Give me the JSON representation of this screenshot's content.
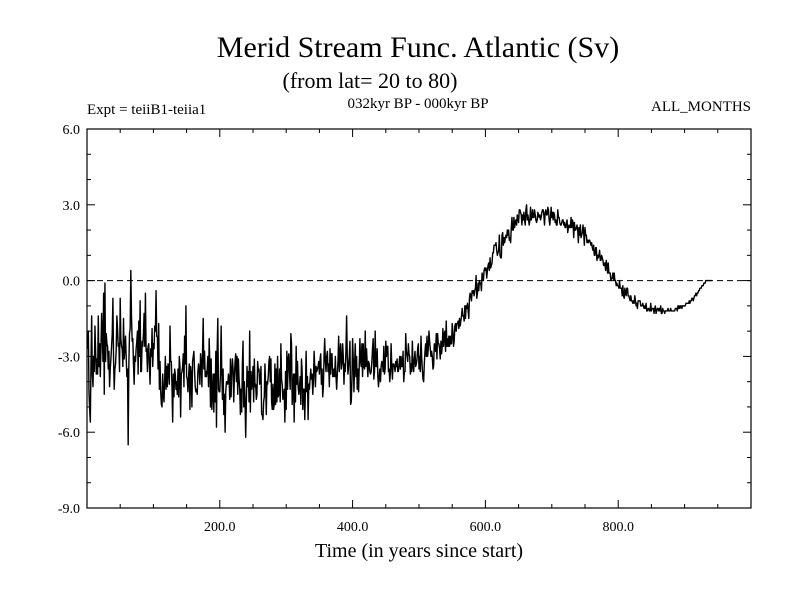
{
  "chart_data": {
    "type": "line",
    "title": "Merid Stream Func. Atlantic (Sv)",
    "subtitle": "(from lat= 20 to 80)",
    "experiment_label": "Expt = teiiB1-teiia1",
    "period_label": "032kyr BP - 000kyr BP",
    "months_label": "ALL_MONTHS",
    "xlabel": "Time (in years since start)",
    "ylabel": "",
    "xlim": [
      0,
      1000
    ],
    "ylim": [
      -9,
      6
    ],
    "x_ticks": [
      200,
      400,
      600,
      800
    ],
    "x_tick_labels": [
      "200.0",
      "400.0",
      "600.0",
      "800.0"
    ],
    "y_ticks": [
      6,
      3,
      0,
      -3,
      -6,
      -9
    ],
    "y_tick_labels": [
      "6.0",
      "3.0",
      "0.0",
      "-3.0",
      "-6.0",
      "-9.0"
    ],
    "reference_line": {
      "y": 0,
      "style": "dashed"
    },
    "grid": false,
    "series": [
      {
        "x_start": 1,
        "x_step": 1,
        "line_color": "#000000",
        "values": [
          -2.7,
          -2.0,
          -4.4,
          -5.1,
          -5.6,
          -3.3,
          -1.4,
          -3.7,
          -4.2,
          -3.0,
          -3.6,
          -1.8,
          -2.8,
          -3.7,
          -3.1,
          -3.7,
          -1.4,
          -3.4,
          -2.5,
          -3.8,
          -2.7,
          -1.3,
          -2.1,
          -3.2,
          -0.5,
          -4.5,
          -0.1,
          -3.2,
          -2.1,
          -2.5,
          -2.6,
          -3.5,
          -2.8,
          -4.2,
          -3.5,
          -3.1,
          -2.6,
          -2.1,
          -0.7,
          -3.1,
          -4.3,
          -3.5,
          -3.3,
          -2.7,
          -1.4,
          -1.9,
          -2.6,
          -2.5,
          -3.6,
          -0.7,
          -2.3,
          -2.6,
          -2.7,
          -3.4,
          -1.5,
          -3.1,
          -2.7,
          -2.2,
          -3.0,
          -3.8,
          -3.5,
          -6.5,
          -3.4,
          -2.1,
          -1.9,
          0.4,
          -1.4,
          -2.4,
          -2.3,
          -3.3,
          -4.1,
          -3.0,
          -3.2,
          -2.7,
          -2.4,
          -2.0,
          -3.7,
          -1.6,
          -3.0,
          -0.8,
          -3.6,
          -3.6,
          -2.4,
          -2.6,
          -2.1,
          -1.3,
          -2.6,
          -0.5,
          -2.8,
          -2.7,
          -3.6,
          -2.6,
          -2.5,
          -3.4,
          -4.1,
          -2.7,
          -3.0,
          -1.9,
          -3.4,
          -2.5,
          -2.7,
          -1.8,
          -2.0,
          -0.4,
          -2.2,
          -2.2,
          -3.5,
          -1.7,
          -4.3,
          -3.2,
          -4.4,
          -4.9,
          -5.0,
          -3.7,
          -4.5,
          -4.8,
          -3.9,
          -3.0,
          -4.3,
          -3.4,
          -4.2,
          -3.3,
          -3.5,
          -4.1,
          -1.8,
          -3.2,
          -3.2,
          -4.2,
          -5.6,
          -3.7,
          -4.6,
          -3.5,
          -3.7,
          -4.3,
          -4.0,
          -4.5,
          -3.5,
          -4.6,
          -3.0,
          -3.4,
          -5.4,
          -3.7,
          -3.6,
          -3.4,
          -2.9,
          -4.2,
          -2.2,
          -3.3,
          -1.0,
          -3.8,
          -3.9,
          -4.4,
          -3.8,
          -3.3,
          -5.1,
          -3.4,
          -3.7,
          -5.0,
          -3.2,
          -3.0,
          -2.8,
          -3.6,
          -4.2,
          -4.4,
          -4.3,
          -4.5,
          -3.6,
          -3.3,
          -3.6,
          -4.1,
          -2.9,
          -3.2,
          -4.2,
          -2.8,
          -1.5,
          -3.5,
          -2.8,
          -3.8,
          -3.6,
          -3.8,
          -3.5,
          -3.0,
          -4.2,
          -2.3,
          -3.3,
          -5.0,
          -3.1,
          -5.1,
          -4.5,
          -3.7,
          -5.2,
          -3.7,
          -4.8,
          -2.8,
          -5.8,
          -2.8,
          -1.5,
          -4.3,
          -4.4,
          -4.4,
          -3.7,
          -1.8,
          -3.6,
          -4.7,
          -3.5,
          -5.3,
          -4.5,
          -6.0,
          -4.4,
          -4.0,
          -4.0,
          -4.1,
          -3.7,
          -3.9,
          -4.7,
          -3.1,
          -4.6,
          -3.6,
          -3.1,
          -3.5,
          -4.8,
          -3.8,
          -3.2,
          -2.9,
          -4.0,
          -3.0,
          -4.5,
          -3.1,
          -3.9,
          -4.3,
          -5.3,
          -4.3,
          -5.2,
          -3.3,
          -2.4,
          -5.0,
          -4.0,
          -4.8,
          -6.2,
          -4.8,
          -3.4,
          -4.2,
          -3.6,
          -4.8,
          -2.0,
          -5.2,
          -3.6,
          -4.3,
          -4.0,
          -3.4,
          -4.8,
          -3.1,
          -4.2,
          -4.1,
          -4.7,
          -4.5,
          -3.2,
          -3.6,
          -3.5,
          -4.1,
          -4.0,
          -3.4,
          -5.3,
          -5.3,
          -5.5,
          -4.8,
          -4.6,
          -3.3,
          -4.1,
          -5.3,
          -4.0,
          -4.1,
          -3.8,
          -3.2,
          -3.0,
          -4.0,
          -3.1,
          -4.8,
          -5.1,
          -4.1,
          -5.1,
          -4.9,
          -3.3,
          -4.9,
          -3.5,
          -4.8,
          -3.0,
          -4.6,
          -4.5,
          -3.5,
          -4.8,
          -2.5,
          -3.9,
          -4.1,
          -4.7,
          -4.6,
          -4.3,
          -5.6,
          -3.6,
          -5.1,
          -2.8,
          -4.3,
          -3.1,
          -2.9,
          -3.7,
          -4.3,
          -2.1,
          -2.5,
          -4.9,
          -4.3,
          -3.7,
          -5.6,
          -3.7,
          -4.8,
          -2.6,
          -4.1,
          -3.2,
          -4.2,
          -4.5,
          -4.2,
          -3.8,
          -4.9,
          -3.1,
          -3.6,
          -5.1,
          -4.3,
          -4.3,
          -5.5,
          -4.2,
          -2.8,
          -4.4,
          -3.8,
          -5.5,
          -4.1,
          -4.3,
          -3.9,
          -3.5,
          -3.9,
          -3.7,
          -4.5,
          -4.0,
          -2.8,
          -3.4,
          -4.2,
          -3.4,
          -3.6,
          -3.5,
          -3.4,
          -3.2,
          -3.7,
          -3.1,
          -2.9,
          -4.1,
          -3.5,
          -4.6,
          -4.2,
          -3.0,
          -2.3,
          -3.2,
          -3.6,
          -3.0,
          -2.8,
          -3.6,
          -3.3,
          -4.2,
          -2.7,
          -3.7,
          -2.9,
          -2.9,
          -3.8,
          -3.8,
          -3.5,
          -3.8,
          -3.0,
          -3.8,
          -4.3,
          -3.7,
          -3.2,
          -2.2,
          -3.6,
          -2.9,
          -2.5,
          -3.5,
          -3.3,
          -2.5,
          -3.0,
          -4.1,
          -3.3,
          -3.6,
          -2.7,
          -1.4,
          -3.0,
          -3.7,
          -3.4,
          -3.0,
          -2.4,
          -4.9,
          -4.8,
          -3.9,
          -2.3,
          -3.1,
          -4.4,
          -3.3,
          -2.5,
          -3.8,
          -3.0,
          -4.3,
          -3.5,
          -4.4,
          -3.4,
          -2.3,
          -3.2,
          -3.4,
          -2.5,
          -3.8,
          -2.5,
          -3.4,
          -3.5,
          -2.0,
          -3.4,
          -2.7,
          -3.3,
          -3.8,
          -3.2,
          -3.3,
          -3.6,
          -3.7,
          -3.6,
          -3.2,
          -2.7,
          -2.3,
          -3.9,
          -3.6,
          -2.0,
          -3.4,
          -3.4,
          -2.7,
          -3.8,
          -4.2,
          -3.8,
          -3.5,
          -4.0,
          -3.4,
          -3.2,
          -3.3,
          -3.6,
          -2.6,
          -3.7,
          -3.5,
          -2.4,
          -3.0,
          -2.6,
          -2.6,
          -3.6,
          -3.5,
          -4.0,
          -3.6,
          -2.5,
          -3.4,
          -3.9,
          -3.3,
          -3.3,
          -3.4,
          -3.6,
          -3.2,
          -3.4,
          -3.1,
          -3.6,
          -3.6,
          -3.3,
          -3.0,
          -3.5,
          -3.0,
          -3.4,
          -3.4,
          -2.8,
          -4.0,
          -3.6,
          -3.6,
          -2.1,
          -2.8,
          -3.0,
          -3.2,
          -2.5,
          -2.9,
          -3.0,
          -3.7,
          -3.3,
          -3.6,
          -2.4,
          -3.4,
          -3.6,
          -3.1,
          -2.8,
          -3.4,
          -3.3,
          -3.1,
          -2.7,
          -2.5,
          -3.5,
          -3.0,
          -3.6,
          -2.2,
          -3.0,
          -3.5,
          -3.9,
          -4.0,
          -3.3,
          -2.8,
          -2.5,
          -3.0,
          -2.2,
          -3.0,
          -2.7,
          -2.0,
          -2.4,
          -2.7,
          -3.0,
          -2.8,
          -3.0,
          -3.5,
          -3.4,
          -2.5,
          -2.7,
          -2.8,
          -2.1,
          -3.1,
          -2.1,
          -2.5,
          -2.5,
          -2.7,
          -3.1,
          -2.4,
          -2.9,
          -2.6,
          -1.9,
          -2.6,
          -2.1,
          -2.0,
          -2.8,
          -1.6,
          -2.6,
          -2.3,
          -2.6,
          -2.2,
          -2.6,
          -2.2,
          -2.5,
          -2.5,
          -1.7,
          -2.0,
          -2.6,
          -2.4,
          -1.8,
          -1.7,
          -2.0,
          -1.7,
          -1.7,
          -1.6,
          -1.9,
          -1.5,
          -1.8,
          -1.6,
          -1.4,
          -1.1,
          -1.4,
          -1.4,
          -1.6,
          -1.0,
          -1.5,
          -1.0,
          -1.1,
          -0.9,
          -1.2,
          -1.5,
          -0.7,
          -0.5,
          -0.6,
          -0.8,
          -0.4,
          -0.5,
          -0.4,
          -0.6,
          -0.4,
          -0.3,
          0.2,
          -0.7,
          -0.5,
          -0.1,
          -0.4,
          0.0,
          -0.1,
          -0.1,
          -0.4,
          0.3,
          0.2,
          0.0,
          0.4,
          0.5,
          0.4,
          0.5,
          0.1,
          0.4,
          0.6,
          0.7,
          0.4,
          0.9,
          0.5,
          0.6,
          0.7,
          1.1,
          1.1,
          1.4,
          1.4,
          1.4,
          1.5,
          1.2,
          1.0,
          1.1,
          1.2,
          1.8,
          1.0,
          0.9,
          0.9,
          1.8,
          1.9,
          1.4,
          1.7,
          1.5,
          1.7,
          1.8,
          1.7,
          2.0,
          1.8,
          2.0,
          1.6,
          1.7,
          1.5,
          2.1,
          2.5,
          2.0,
          2.0,
          2.5,
          2.1,
          2.3,
          2.4,
          2.2,
          2.6,
          2.5,
          2.3,
          2.8,
          2.8,
          2.7,
          2.6,
          2.2,
          2.6,
          2.4,
          2.7,
          2.4,
          2.2,
          2.8,
          3.0,
          2.4,
          2.6,
          2.4,
          2.2,
          2.4,
          2.9,
          2.4,
          2.5,
          2.8,
          2.5,
          2.5,
          2.8,
          2.6,
          2.4,
          2.3,
          2.4,
          2.7,
          2.6,
          2.5,
          2.6,
          2.4,
          2.5,
          2.7,
          2.8,
          2.8,
          2.6,
          2.2,
          2.7,
          2.8,
          2.6,
          2.6,
          2.9,
          2.8,
          2.4,
          2.2,
          2.5,
          2.9,
          2.5,
          2.7,
          2.4,
          2.7,
          2.6,
          2.3,
          2.4,
          2.2,
          2.2,
          2.8,
          2.5,
          2.5,
          2.3,
          2.2,
          2.2,
          2.3,
          2.4,
          2.4,
          2.2,
          2.3,
          2.1,
          2.1,
          2.3,
          2.4,
          1.9,
          2.1,
          2.2,
          2.1,
          2.1,
          2.5,
          2.1,
          2.4,
          2.3,
          1.7,
          2.3,
          2.0,
          2.0,
          2.1,
          2.2,
          2.0,
          1.5,
          2.1,
          1.8,
          2.2,
          1.7,
          1.8,
          1.9,
          2.2,
          1.9,
          1.4,
          2.1,
          1.8,
          1.8,
          1.5,
          1.6,
          1.5,
          1.6,
          1.6,
          1.5,
          1.4,
          1.5,
          1.3,
          1.2,
          1.4,
          1.0,
          1.0,
          1.3,
          1.3,
          0.8,
          1.0,
          0.9,
          1.0,
          1.2,
          0.8,
          0.8,
          1.0,
          0.9,
          0.8,
          0.6,
          0.6,
          0.7,
          0.4,
          0.8,
          0.6,
          0.3,
          0.7,
          0.3,
          0.3,
          0.3,
          0.0,
          0.1,
          0.1,
          0.3,
          0.0,
          0.3,
          0.0,
          0.0,
          -0.2,
          -0.1,
          -0.2,
          -0.2,
          -0.3,
          0.0,
          -0.3,
          -0.3,
          -0.3,
          -0.6,
          -0.2,
          -0.6,
          -0.7,
          -0.3,
          -0.5,
          -0.6,
          -0.3,
          -0.3,
          -0.6,
          -0.6,
          -0.7,
          -0.8,
          -0.6,
          -0.8,
          -0.8,
          -0.9,
          -0.8,
          -0.9,
          -0.6,
          -0.8,
          -1.0,
          -0.9,
          -1.1,
          -0.8,
          -0.8,
          -0.8,
          -0.8,
          -1.0,
          -1.0,
          -1.0,
          -0.9,
          -1.0,
          -1.1,
          -1.0,
          -1.1,
          -0.9,
          -1.2,
          -1.2,
          -1.1,
          -1.1,
          -1.2,
          -1.2,
          -0.9,
          -1.2,
          -1.1,
          -1.1,
          -1.1,
          -1.3,
          -1.1,
          -1.0,
          -1.3,
          -1.2,
          -1.1,
          -1.1,
          -1.2,
          -1.1,
          -1.2,
          -1.0,
          -1.3,
          -1.3,
          -1.1,
          -1.2,
          -1.2,
          -1.3,
          -1.2,
          -1.2,
          -1.2,
          -1.2,
          -1.1,
          -1.2,
          -1.2,
          -1.2,
          -1.1,
          -1.2,
          -1.2,
          -1.2,
          -1.2,
          -1.2,
          -1.2,
          -1.1,
          -1.1,
          -1.1,
          -1.2,
          -1.0,
          -1.1,
          -1.0,
          -1.1,
          -1.0,
          -1.0,
          -1.1,
          -1.0,
          -1.0,
          -1.0,
          -1.0,
          -1.0,
          -0.9,
          -0.9,
          -0.9,
          -0.9,
          -0.9,
          -0.8,
          -0.9,
          -0.8,
          -0.8,
          -0.7,
          -0.7,
          -0.8,
          -0.7,
          -0.6,
          -0.6,
          -0.5,
          -0.6,
          -0.5,
          -0.5,
          -0.4,
          -0.4,
          -0.3,
          -0.3,
          -0.3,
          -0.2,
          -0.2,
          -0.2,
          -0.1,
          -0.1,
          -0.1,
          0.0,
          0.0,
          0.0,
          0.0,
          0.0,
          0.0,
          0.0,
          0.0,
          0.0,
          0.0
        ]
      }
    ]
  }
}
